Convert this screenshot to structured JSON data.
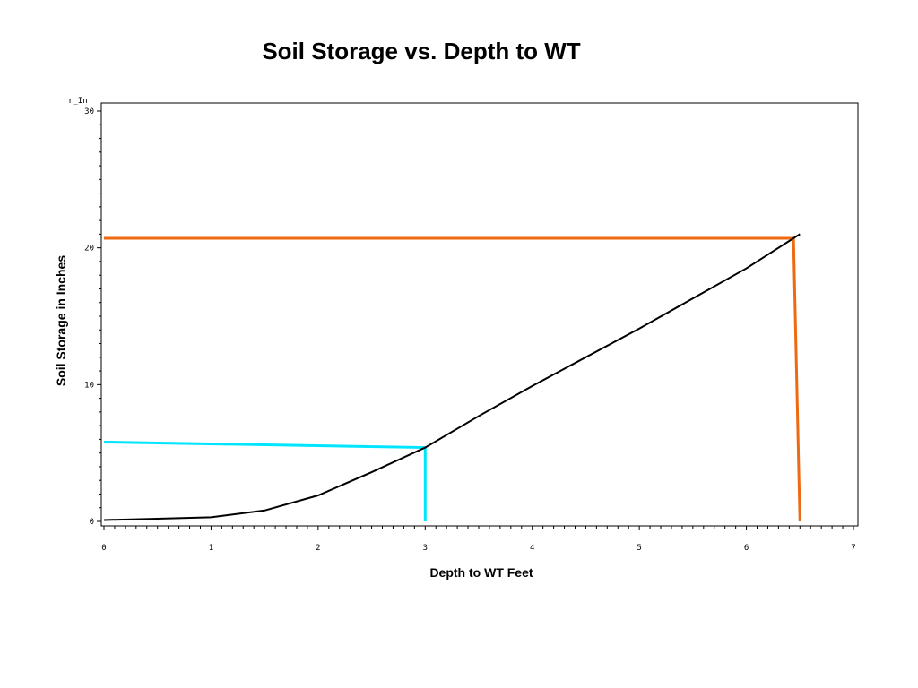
{
  "chart_data": {
    "type": "line",
    "title": "Soil Storage vs. Depth to WT",
    "xlabel": "Depth to WT Feet",
    "ylabel": "Soil Storage in Inches",
    "y_axis_tag": "r_In",
    "xlim": [
      0,
      7
    ],
    "ylim": [
      0,
      30
    ],
    "x_ticks": [
      "0",
      "1",
      "2",
      "3",
      "4",
      "5",
      "6",
      "7"
    ],
    "y_ticks": [
      "0",
      "10",
      "20",
      "30"
    ],
    "grid": false,
    "series": [
      {
        "color": "#000000",
        "x": [
          0,
          0.5,
          1,
          1.5,
          2,
          2.5,
          3,
          3.5,
          4,
          4.5,
          5,
          5.5,
          6,
          6.5
        ],
        "y": [
          0.1,
          0.2,
          0.3,
          0.8,
          1.9,
          3.6,
          5.4,
          7.7,
          9.9,
          12.0,
          14.1,
          16.3,
          18.5,
          21.0
        ]
      }
    ],
    "guides": [
      {
        "color": "#00e5ff",
        "points": [
          [
            0,
            5.8
          ],
          [
            3,
            5.4
          ],
          [
            3,
            0
          ]
        ]
      },
      {
        "color": "#ee6a10",
        "points": [
          [
            0,
            20.7
          ],
          [
            6.44,
            20.7
          ],
          [
            6.5,
            0
          ]
        ]
      }
    ]
  }
}
